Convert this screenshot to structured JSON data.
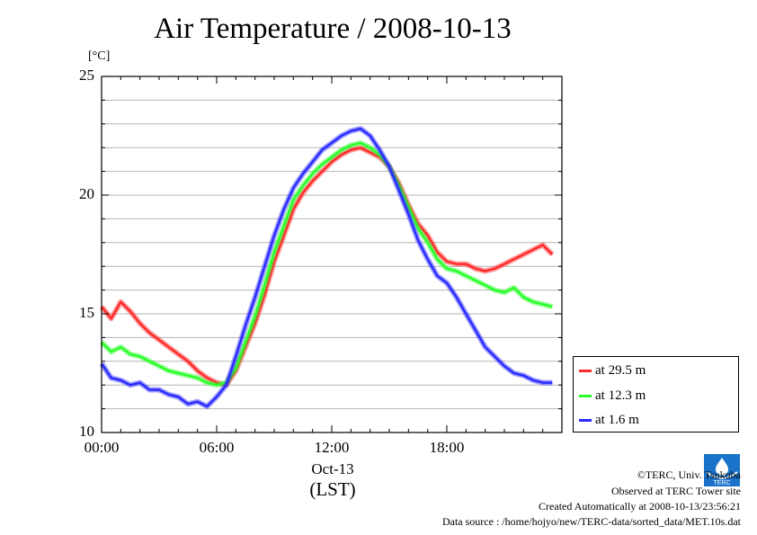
{
  "title": "Air Temperature / 2008-10-13",
  "unit_label": "[°C]",
  "x_date_label": "Oct-13",
  "x_unit_label": "(LST)",
  "legend": [
    {
      "label": "at 29.5 m",
      "color": "#ff2a2a"
    },
    {
      "label": "at 12.3 m",
      "color": "#2aff2a"
    },
    {
      "label": "at 1.6 m",
      "color": "#2a2aff"
    }
  ],
  "credits": {
    "copyright": "©TERC, Univ. Tsukuba",
    "observed": "Observed at TERC Tower site",
    "created": "Created Automatically at 2008-10-13/23:56:21",
    "source": "Data source : /home/hojyo/new/TERC-data/sorted_data/MET.10s.dat"
  },
  "logo_text": "TERC",
  "chart_data": {
    "type": "line",
    "title": "Air Temperature / 2008-10-13",
    "ylabel": "[°C]",
    "xlabel": "(LST)",
    "xlim": [
      0,
      24
    ],
    "ylim": [
      10,
      25
    ],
    "x_ticks": [
      {
        "value": 0,
        "label": "00:00"
      },
      {
        "value": 6,
        "label": "06:00"
      },
      {
        "value": 12,
        "label": "12:00"
      },
      {
        "value": 18,
        "label": "18:00"
      }
    ],
    "y_ticks": [
      10,
      15,
      20,
      25
    ],
    "grid": true,
    "legend_position": "right",
    "x": [
      0.0,
      0.5,
      1.0,
      1.5,
      2.0,
      2.5,
      3.0,
      3.5,
      4.0,
      4.5,
      5.0,
      5.5,
      6.0,
      6.5,
      7.0,
      7.5,
      8.0,
      8.5,
      9.0,
      9.5,
      10.0,
      10.5,
      11.0,
      11.5,
      12.0,
      12.5,
      13.0,
      13.5,
      14.0,
      14.5,
      15.0,
      15.5,
      16.0,
      16.5,
      17.0,
      17.5,
      18.0,
      18.5,
      19.0,
      19.5,
      20.0,
      20.5,
      21.0,
      21.5,
      22.0,
      22.5,
      23.0,
      23.5
    ],
    "series": [
      {
        "name": "at 29.5 m",
        "color": "#ff2a2a",
        "values": [
          15.3,
          14.8,
          15.5,
          15.1,
          14.6,
          14.2,
          13.9,
          13.6,
          13.3,
          13.0,
          12.6,
          12.3,
          12.1,
          12.0,
          12.6,
          13.6,
          14.6,
          15.8,
          17.2,
          18.3,
          19.4,
          20.1,
          20.6,
          21.0,
          21.4,
          21.7,
          21.9,
          22.0,
          21.8,
          21.6,
          21.2,
          20.5,
          19.6,
          18.8,
          18.3,
          17.6,
          17.2,
          17.1,
          17.1,
          16.9,
          16.8,
          16.9,
          17.1,
          17.3,
          17.5,
          17.7,
          17.9,
          17.5
        ]
      },
      {
        "name": "at 12.3 m",
        "color": "#2aff2a",
        "values": [
          13.8,
          13.4,
          13.6,
          13.3,
          13.2,
          13.0,
          12.8,
          12.6,
          12.5,
          12.4,
          12.3,
          12.1,
          12.0,
          12.1,
          12.7,
          13.8,
          14.9,
          16.2,
          17.6,
          18.7,
          19.8,
          20.4,
          20.9,
          21.3,
          21.6,
          21.9,
          22.1,
          22.2,
          22.0,
          21.7,
          21.2,
          20.4,
          19.5,
          18.6,
          18.0,
          17.3,
          16.9,
          16.8,
          16.6,
          16.4,
          16.2,
          16.0,
          15.9,
          16.1,
          15.7,
          15.5,
          15.4,
          15.3
        ]
      },
      {
        "name": "at 1.6 m",
        "color": "#2a2aff",
        "values": [
          12.9,
          12.3,
          12.2,
          12.0,
          12.1,
          11.8,
          11.8,
          11.6,
          11.5,
          11.2,
          11.3,
          11.1,
          11.5,
          12.0,
          13.2,
          14.5,
          15.7,
          17.0,
          18.3,
          19.4,
          20.3,
          20.9,
          21.4,
          21.9,
          22.2,
          22.5,
          22.7,
          22.8,
          22.5,
          21.9,
          21.2,
          20.2,
          19.2,
          18.1,
          17.3,
          16.6,
          16.3,
          15.7,
          15.0,
          14.3,
          13.6,
          13.2,
          12.8,
          12.5,
          12.4,
          12.2,
          12.1,
          12.1
        ]
      }
    ]
  }
}
